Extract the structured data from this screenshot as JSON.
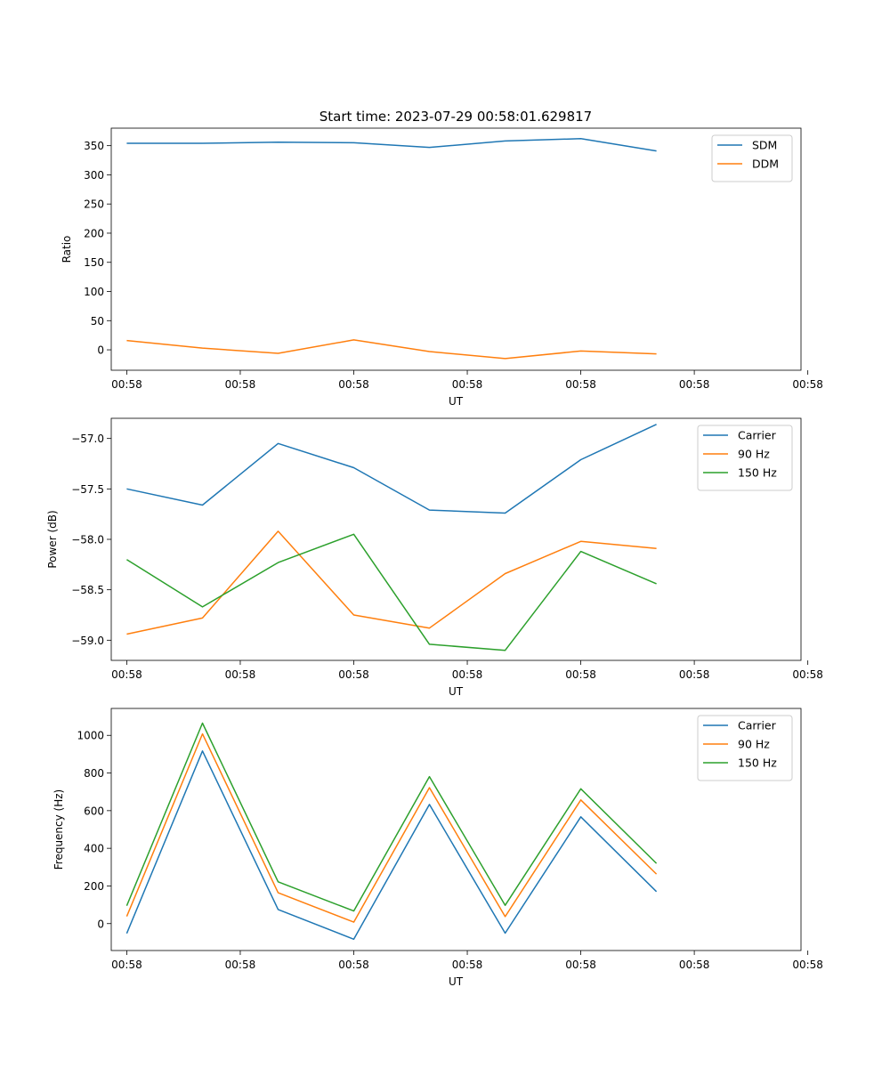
{
  "figure_title": "Start time: 2023-07-29 00:58:01.629817",
  "chart_data": [
    {
      "type": "line",
      "ylabel": "Ratio",
      "xlabel": "UT",
      "ylim": [
        -35,
        380
      ],
      "yticks": [
        0,
        50,
        100,
        150,
        200,
        250,
        300,
        350
      ],
      "ytick_labels": [
        "0",
        "50",
        "100",
        "150",
        "200",
        "250",
        "300",
        "350"
      ],
      "xlim": [
        -0.205,
        8.91
      ],
      "xticks": [
        0,
        1.5,
        3,
        4.5,
        6,
        7.5,
        9
      ],
      "xtick_labels": [
        "00:58",
        "00:58",
        "00:58",
        "00:58",
        "00:58",
        "00:58",
        "00:58"
      ],
      "legend": "top-right",
      "x": [
        0,
        1,
        2,
        3,
        4,
        5,
        6,
        7
      ],
      "series": [
        {
          "name": "SDM",
          "color": "#1f77b4",
          "values": [
            354,
            354,
            356,
            355,
            347,
            358,
            362,
            341
          ]
        },
        {
          "name": "DDM",
          "color": "#ff7f0e",
          "values": [
            16,
            3,
            -6,
            17,
            -3,
            -15,
            -2,
            -7
          ]
        }
      ]
    },
    {
      "type": "line",
      "ylabel": "Power (dB)",
      "xlabel": "UT",
      "ylim": [
        -59.2,
        -56.8
      ],
      "yticks": [
        -59.0,
        -58.5,
        -58.0,
        -57.5,
        -57.0
      ],
      "ytick_labels": [
        "−59.0",
        "−58.5",
        "−58.0",
        "−57.5",
        "−57.0"
      ],
      "xlim": [
        -0.205,
        8.91
      ],
      "xticks": [
        0,
        1.5,
        3,
        4.5,
        6,
        7.5,
        9
      ],
      "xtick_labels": [
        "00:58",
        "00:58",
        "00:58",
        "00:58",
        "00:58",
        "00:58",
        "00:58"
      ],
      "legend": "top-right",
      "x": [
        0,
        1,
        2,
        3,
        4,
        5,
        6,
        7
      ],
      "series": [
        {
          "name": "Carrier",
          "color": "#1f77b4",
          "values": [
            -57.5,
            -57.66,
            -57.05,
            -57.29,
            -57.71,
            -57.74,
            -57.21,
            -56.86
          ]
        },
        {
          "name": "90 Hz",
          "color": "#ff7f0e",
          "values": [
            -58.94,
            -58.78,
            -57.92,
            -58.75,
            -58.88,
            -58.34,
            -58.02,
            -58.09
          ]
        },
        {
          "name": "150 Hz",
          "color": "#2ca02c",
          "values": [
            -58.2,
            -58.67,
            -58.23,
            -57.95,
            -59.04,
            -59.1,
            -58.12,
            -58.44
          ]
        }
      ]
    },
    {
      "type": "line",
      "ylabel": "Frequency (Hz)",
      "xlabel": "UT",
      "ylim": [
        -143,
        1143
      ],
      "yticks": [
        0,
        200,
        400,
        600,
        800,
        1000
      ],
      "ytick_labels": [
        "0",
        "200",
        "400",
        "600",
        "800",
        "1000"
      ],
      "xlim": [
        -0.205,
        8.91
      ],
      "xticks": [
        0,
        1.5,
        3,
        4.5,
        6,
        7.5,
        9
      ],
      "xtick_labels": [
        "00:58",
        "00:58",
        "00:58",
        "00:58",
        "00:58",
        "00:58",
        "00:58"
      ],
      "legend": "top-right",
      "x": [
        0,
        1,
        2,
        3,
        4,
        5,
        6,
        7
      ],
      "series": [
        {
          "name": "Carrier",
          "color": "#1f77b4",
          "values": [
            -52,
            917,
            75,
            -83,
            633,
            -51,
            567,
            170
          ]
        },
        {
          "name": "90 Hz",
          "color": "#ff7f0e",
          "values": [
            38,
            1008,
            164,
            8,
            722,
            37,
            657,
            263
          ]
        },
        {
          "name": "150 Hz",
          "color": "#2ca02c",
          "values": [
            95,
            1065,
            222,
            67,
            781,
            97,
            716,
            320
          ]
        }
      ]
    }
  ]
}
